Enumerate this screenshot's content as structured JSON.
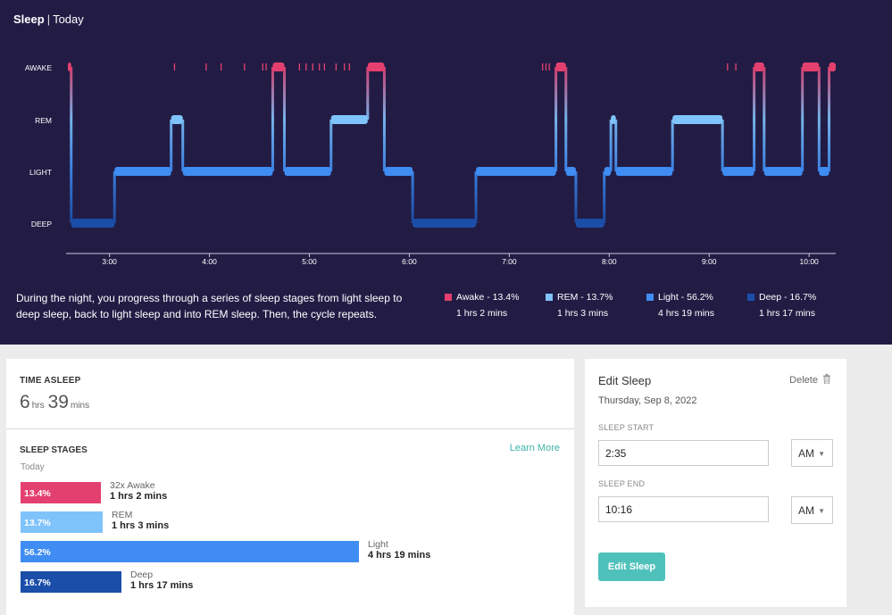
{
  "header": {
    "title": "Sleep",
    "separator": "|",
    "subtitle": "Today"
  },
  "chart_data": {
    "type": "line",
    "subtype": "hypnogram-step",
    "y_levels": [
      "AWAKE",
      "REM",
      "LIGHT",
      "DEEP"
    ],
    "x_ticks": [
      "3:00",
      "4:00",
      "5:00",
      "6:00",
      "7:00",
      "8:00",
      "9:00",
      "10:00"
    ],
    "x_domain": [
      "2:35",
      "10:16"
    ],
    "segments": [
      {
        "start": "2:35",
        "end": "2:37",
        "stage": "AWAKE"
      },
      {
        "start": "2:37",
        "end": "3:03",
        "stage": "DEEP"
      },
      {
        "start": "3:03",
        "end": "3:37",
        "stage": "LIGHT"
      },
      {
        "start": "3:37",
        "end": "3:44",
        "stage": "REM"
      },
      {
        "start": "3:44",
        "end": "4:38",
        "stage": "LIGHT"
      },
      {
        "start": "4:38",
        "end": "4:45",
        "stage": "AWAKE"
      },
      {
        "start": "4:45",
        "end": "5:13",
        "stage": "LIGHT"
      },
      {
        "start": "5:13",
        "end": "5:35",
        "stage": "REM"
      },
      {
        "start": "5:35",
        "end": "5:45",
        "stage": "AWAKE"
      },
      {
        "start": "5:45",
        "end": "6:02",
        "stage": "LIGHT"
      },
      {
        "start": "6:02",
        "end": "6:40",
        "stage": "DEEP"
      },
      {
        "start": "6:40",
        "end": "7:28",
        "stage": "LIGHT"
      },
      {
        "start": "7:28",
        "end": "7:34",
        "stage": "AWAKE"
      },
      {
        "start": "7:34",
        "end": "7:40",
        "stage": "LIGHT"
      },
      {
        "start": "7:40",
        "end": "7:57",
        "stage": "DEEP"
      },
      {
        "start": "7:57",
        "end": "8:01",
        "stage": "LIGHT"
      },
      {
        "start": "8:01",
        "end": "8:04",
        "stage": "REM"
      },
      {
        "start": "8:04",
        "end": "8:38",
        "stage": "LIGHT"
      },
      {
        "start": "8:38",
        "end": "9:08",
        "stage": "REM"
      },
      {
        "start": "9:08",
        "end": "9:27",
        "stage": "LIGHT"
      },
      {
        "start": "9:27",
        "end": "9:33",
        "stage": "AWAKE"
      },
      {
        "start": "9:33",
        "end": "9:56",
        "stage": "LIGHT"
      },
      {
        "start": "9:56",
        "end": "10:06",
        "stage": "AWAKE"
      },
      {
        "start": "10:06",
        "end": "10:12",
        "stage": "LIGHT"
      },
      {
        "start": "10:12",
        "end": "10:16",
        "stage": "AWAKE"
      }
    ],
    "brief_awakenings": [
      "3:39",
      "3:58",
      "4:07",
      "4:21",
      "4:32",
      "4:34",
      "4:54",
      "4:58",
      "5:02",
      "5:06",
      "5:09",
      "5:16",
      "5:21",
      "5:24",
      "7:20",
      "7:22",
      "7:24",
      "7:29",
      "9:11",
      "9:16"
    ],
    "colors": {
      "AWAKE": "#e4406f",
      "REM": "#7fc3fb",
      "LIGHT": "#3f8cf2",
      "DEEP": "#1b4ea8"
    }
  },
  "hypnogram": {
    "description": "During the night, you progress through a series of sleep stages from light sleep to deep sleep, back to light sleep and into REM sleep. Then, the cycle repeats.",
    "legend": [
      {
        "label": "Awake - 13.4%",
        "duration": "1 hrs 2 mins",
        "color": "#e4406f"
      },
      {
        "label": "REM - 13.7%",
        "duration": "1 hrs 3 mins",
        "color": "#7fc3fb"
      },
      {
        "label": "Light - 56.2%",
        "duration": "4 hrs 19 mins",
        "color": "#3f8cf2"
      },
      {
        "label": "Deep - 16.7%",
        "duration": "1 hrs 17 mins",
        "color": "#1b4ea8"
      }
    ]
  },
  "time_asleep": {
    "label": "TIME ASLEEP",
    "hours": "6",
    "hours_unit": "hrs",
    "minutes": "39",
    "minutes_unit": "mins"
  },
  "sleep_stages": {
    "label": "SLEEP STAGES",
    "learn_more": "Learn More",
    "period": "Today",
    "rows": [
      {
        "percent_label": "13.4%",
        "fraction": 0.134,
        "name": "32x Awake",
        "duration": "1 hrs 2 mins",
        "color": "#e4406f"
      },
      {
        "percent_label": "13.7%",
        "fraction": 0.137,
        "name": "REM",
        "duration": "1 hrs 3 mins",
        "color": "#7fc3fb"
      },
      {
        "percent_label": "56.2%",
        "fraction": 0.562,
        "name": "Light",
        "duration": "4 hrs 19 mins",
        "color": "#3f8cf2"
      },
      {
        "percent_label": "16.7%",
        "fraction": 0.167,
        "name": "Deep",
        "duration": "1 hrs 17 mins",
        "color": "#1b4ea8"
      }
    ]
  },
  "edit_sleep": {
    "title": "Edit Sleep",
    "delete_label": "Delete",
    "date": "Thursday, Sep 8, 2022",
    "start_label": "SLEEP START",
    "start_value": "2:35",
    "start_ampm": "AM",
    "end_label": "SLEEP END",
    "end_value": "10:16",
    "end_ampm": "AM",
    "button": "Edit Sleep"
  }
}
